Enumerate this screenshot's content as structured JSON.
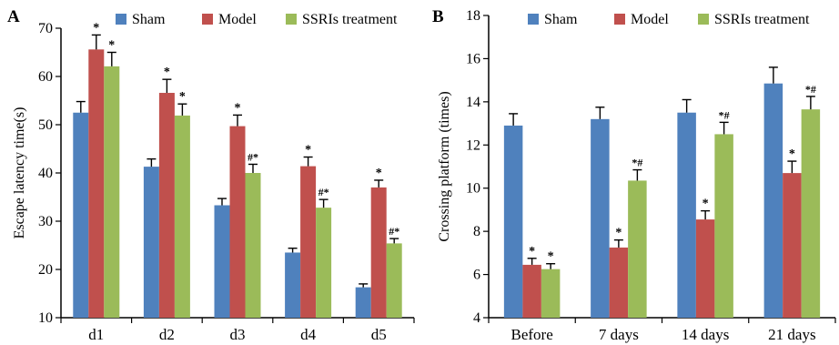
{
  "chart_data": [
    {
      "type": "bar",
      "panel": "A",
      "ylabel": "Escape latency time(s)",
      "ylim": [
        10,
        70
      ],
      "yticks": [
        10,
        20,
        30,
        40,
        50,
        60,
        70
      ],
      "categories": [
        "d1",
        "d2",
        "d3",
        "d4",
        "d5"
      ],
      "legend_position": "top",
      "series": [
        {
          "name": "Sham",
          "color": "#4f81bd",
          "values": [
            52.5,
            41.3,
            33.3,
            23.5,
            16.3
          ],
          "errors": [
            2.3,
            1.6,
            1.4,
            0.9,
            0.7
          ],
          "labels": [
            "",
            "",
            "",
            "",
            ""
          ]
        },
        {
          "name": "Model",
          "color": "#c0504d",
          "values": [
            65.6,
            56.6,
            49.7,
            41.4,
            37.0
          ],
          "errors": [
            3.0,
            2.8,
            2.3,
            1.9,
            1.5
          ],
          "labels": [
            "*",
            "*",
            "*",
            "*",
            "*"
          ]
        },
        {
          "name": "SSRIs treatment",
          "color": "#9bbb59",
          "values": [
            62.1,
            51.9,
            40.0,
            32.8,
            25.4
          ],
          "errors": [
            2.9,
            2.4,
            1.8,
            1.7,
            1.0
          ],
          "labels": [
            "*",
            "*",
            "#*",
            "#*",
            "#*"
          ]
        }
      ]
    },
    {
      "type": "bar",
      "panel": "B",
      "ylabel": "Crossing platform (times)",
      "ylim": [
        4,
        18
      ],
      "yticks": [
        4,
        6,
        8,
        10,
        12,
        14,
        16,
        18
      ],
      "categories": [
        "Before",
        "7 days",
        "14 days",
        "21 days"
      ],
      "legend_position": "top",
      "series": [
        {
          "name": "Sham",
          "color": "#4f81bd",
          "values": [
            12.9,
            13.2,
            13.5,
            14.85
          ],
          "errors": [
            0.55,
            0.55,
            0.6,
            0.75
          ],
          "labels": [
            "",
            "",
            "",
            ""
          ]
        },
        {
          "name": "Model",
          "color": "#c0504d",
          "values": [
            6.45,
            7.25,
            8.55,
            10.7
          ],
          "errors": [
            0.3,
            0.35,
            0.4,
            0.55
          ],
          "labels": [
            "*",
            "*",
            "*",
            "*"
          ]
        },
        {
          "name": "SSRIs treatment",
          "color": "#9bbb59",
          "values": [
            6.25,
            10.35,
            12.5,
            13.65
          ],
          "errors": [
            0.25,
            0.5,
            0.55,
            0.6
          ],
          "labels": [
            "*",
            "*#",
            "*#",
            "*#"
          ]
        }
      ]
    }
  ]
}
